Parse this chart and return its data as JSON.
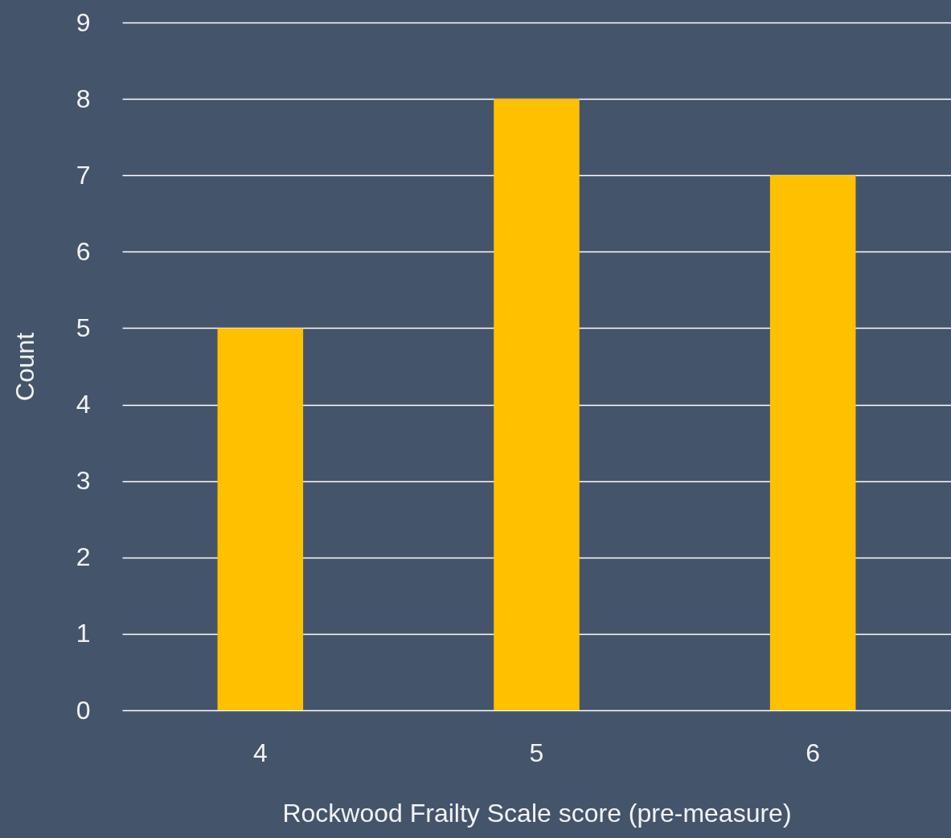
{
  "chart_data": {
    "type": "bar",
    "categories": [
      "4",
      "5",
      "6"
    ],
    "values": [
      5,
      8,
      7
    ],
    "color": "#ffc000",
    "xlabel": "Rockwood Frailty Scale score (pre-measure)",
    "ylabel": "Count",
    "ylim": [
      0,
      9
    ],
    "yticks": [
      0,
      1,
      2,
      3,
      4,
      5,
      6,
      7,
      8,
      9
    ],
    "grid": "y"
  }
}
